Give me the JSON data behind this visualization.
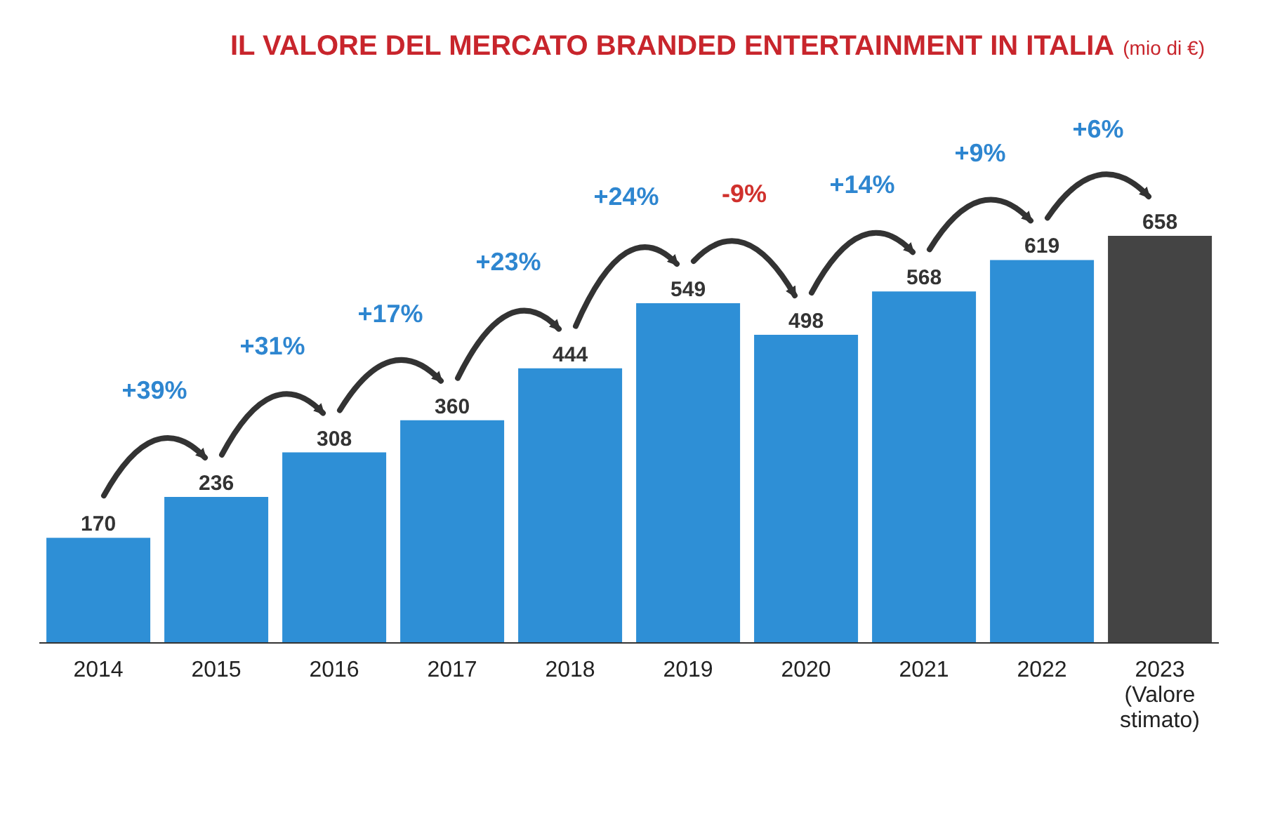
{
  "chart_data": {
    "type": "bar",
    "title": "IL VALORE DEL MERCATO BRANDED ENTERTAINMENT IN ITALIA",
    "subtitle": "(mio di €)",
    "categories": [
      "2014",
      "2015",
      "2016",
      "2017",
      "2018",
      "2019",
      "2020",
      "2021",
      "2022",
      "2023\n(Valore\nstimato)"
    ],
    "values": [
      170,
      236,
      308,
      360,
      444,
      549,
      498,
      568,
      619,
      658
    ],
    "colors": [
      "#2e8fd6",
      "#2e8fd6",
      "#2e8fd6",
      "#2e8fd6",
      "#2e8fd6",
      "#2e8fd6",
      "#2e8fd6",
      "#2e8fd6",
      "#2e8fd6",
      "#444444"
    ],
    "data_labels": true,
    "legend": false,
    "grid": false,
    "annotations": [
      "+39%",
      "+31%",
      "+17%",
      "+23%",
      "+24%",
      "-9%",
      "+14%",
      "+9%",
      "+6%"
    ]
  }
}
